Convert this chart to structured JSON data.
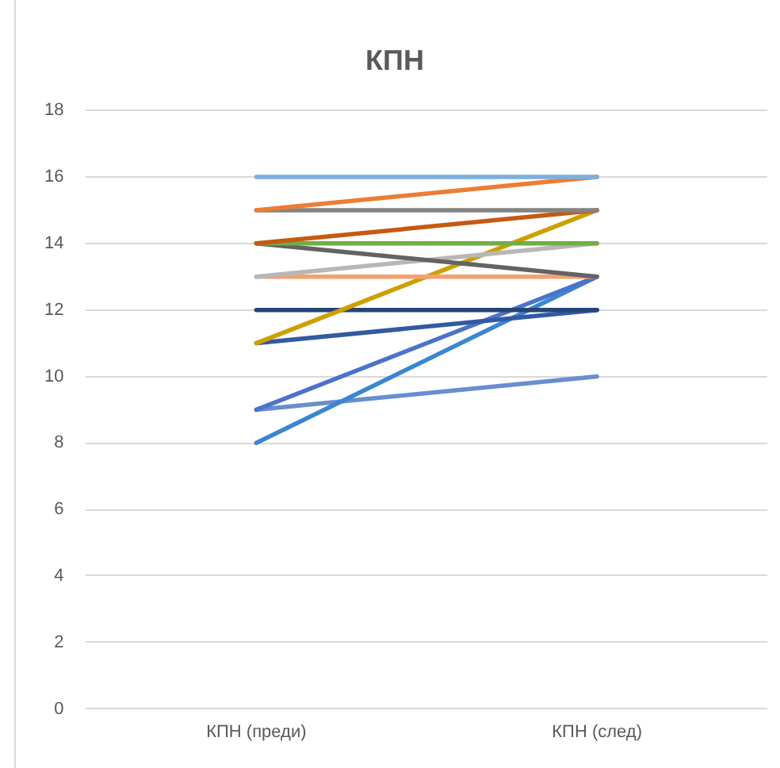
{
  "chart_data": {
    "type": "line",
    "title": "КПН",
    "categories": [
      "КПН (преди)",
      "КПН (след)"
    ],
    "series": [
      {
        "color": "#7cafdd",
        "values": [
          16,
          16
        ]
      },
      {
        "color": "#ed7d31",
        "values": [
          15,
          16
        ]
      },
      {
        "color": "#848484",
        "values": [
          15,
          15
        ]
      },
      {
        "color": "#c55a11",
        "values": [
          14,
          15
        ]
      },
      {
        "color": "#70ad47",
        "values": [
          14,
          14
        ]
      },
      {
        "color": "#636363",
        "values": [
          14,
          13
        ]
      },
      {
        "color": "#b7b7b7",
        "values": [
          13,
          14
        ]
      },
      {
        "color": "#f4a070",
        "values": [
          13,
          13
        ]
      },
      {
        "color": "#cca000",
        "values": [
          11,
          15
        ]
      },
      {
        "color": "#264478",
        "values": [
          12,
          12
        ]
      },
      {
        "color": "#335aa1",
        "values": [
          11,
          12
        ]
      },
      {
        "color": "#4a73c9",
        "values": [
          9,
          13
        ]
      },
      {
        "color": "#3a87d0",
        "values": [
          8,
          13
        ]
      },
      {
        "color": "#698ed0",
        "values": [
          9,
          10
        ]
      }
    ],
    "ylim": [
      0,
      18
    ],
    "yticks": [
      0,
      2,
      4,
      6,
      8,
      10,
      12,
      14,
      16,
      18
    ],
    "grid": "y",
    "legend": false,
    "marker": "none",
    "line_style": "solid"
  }
}
